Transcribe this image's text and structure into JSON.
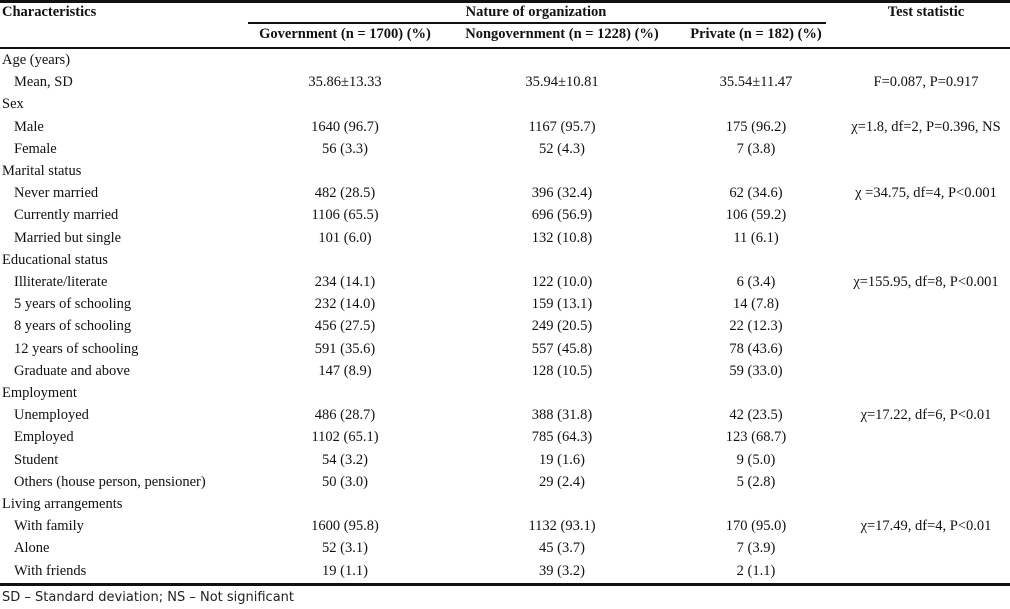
{
  "header": {
    "characteristics": "Characteristics",
    "nature": "Nature of organization",
    "test_statistic": "Test statistic",
    "col_gov": "Government (n = 1700) (%)",
    "col_nongov": "Nongovernment (n = 1228) (%)",
    "col_private": "Private (n = 182) (%)"
  },
  "rows": [
    {
      "type": "category",
      "label": "Age (years)"
    },
    {
      "type": "item",
      "label": "Mean, SD",
      "gov": "35.86±13.33",
      "nongov": "35.94±10.81",
      "private": "35.54±11.47",
      "stat": "F=0.087, P=0.917"
    },
    {
      "type": "category",
      "label": "Sex"
    },
    {
      "type": "item",
      "label": "Male",
      "gov": "1640 (96.7)",
      "nongov": "1167 (95.7)",
      "private": "175 (96.2)",
      "stat": "χ=1.8, df=2, P=0.396, NS"
    },
    {
      "type": "item",
      "label": "Female",
      "gov": "56 (3.3)",
      "nongov": "52 (4.3)",
      "private": "7 (3.8)",
      "stat": ""
    },
    {
      "type": "category",
      "label": "Marital status"
    },
    {
      "type": "item",
      "label": "Never married",
      "gov": "482 (28.5)",
      "nongov": "396 (32.4)",
      "private": "62 (34.6)",
      "stat": "χ =34.75, df=4, P<0.001"
    },
    {
      "type": "item",
      "label": "Currently married",
      "gov": "1106 (65.5)",
      "nongov": "696 (56.9)",
      "private": "106 (59.2)",
      "stat": ""
    },
    {
      "type": "item",
      "label": "Married but single",
      "gov": "101 (6.0)",
      "nongov": "132 (10.8)",
      "private": "11 (6.1)",
      "stat": ""
    },
    {
      "type": "category",
      "label": "Educational status"
    },
    {
      "type": "item",
      "label": "Illiterate/literate",
      "gov": "234 (14.1)",
      "nongov": "122 (10.0)",
      "private": "6 (3.4)",
      "stat": "χ=155.95, df=8, P<0.001"
    },
    {
      "type": "item",
      "label": "5 years of schooling",
      "gov": "232 (14.0)",
      "nongov": "159 (13.1)",
      "private": "14 (7.8)",
      "stat": ""
    },
    {
      "type": "item",
      "label": "8 years of schooling",
      "gov": "456 (27.5)",
      "nongov": "249 (20.5)",
      "private": "22 (12.3)",
      "stat": ""
    },
    {
      "type": "item",
      "label": "12 years of schooling",
      "gov": "591 (35.6)",
      "nongov": "557 (45.8)",
      "private": "78 (43.6)",
      "stat": ""
    },
    {
      "type": "item",
      "label": "Graduate and above",
      "gov": "147 (8.9)",
      "nongov": "128 (10.5)",
      "private": "59 (33.0)",
      "stat": ""
    },
    {
      "type": "category",
      "label": "Employment"
    },
    {
      "type": "item",
      "label": "Unemployed",
      "gov": "486 (28.7)",
      "nongov": "388 (31.8)",
      "private": "42 (23.5)",
      "stat": "χ=17.22, df=6, P<0.01"
    },
    {
      "type": "item",
      "label": "Employed",
      "gov": "1102 (65.1)",
      "nongov": "785 (64.3)",
      "private": "123 (68.7)",
      "stat": ""
    },
    {
      "type": "item",
      "label": "Student",
      "gov": "54 (3.2)",
      "nongov": "19 (1.6)",
      "private": "9 (5.0)",
      "stat": ""
    },
    {
      "type": "item",
      "label": "Others (house person, pensioner)",
      "gov": "50 (3.0)",
      "nongov": "29 (2.4)",
      "private": "5 (2.8)",
      "stat": ""
    },
    {
      "type": "category",
      "label": "Living arrangements"
    },
    {
      "type": "item",
      "label": "With family",
      "gov": "1600 (95.8)",
      "nongov": "1132 (93.1)",
      "private": "170 (95.0)",
      "stat": "χ=17.49, df=4, P<0.01"
    },
    {
      "type": "item",
      "label": "Alone",
      "gov": "52 (3.1)",
      "nongov": "45 (3.7)",
      "private": "7 (3.9)",
      "stat": ""
    },
    {
      "type": "item",
      "label": "With friends",
      "gov": "19 (1.1)",
      "nongov": "39 (3.2)",
      "private": "2 (1.1)",
      "stat": ""
    }
  ],
  "footer": "SD – Standard deviation; NS – Not significant"
}
